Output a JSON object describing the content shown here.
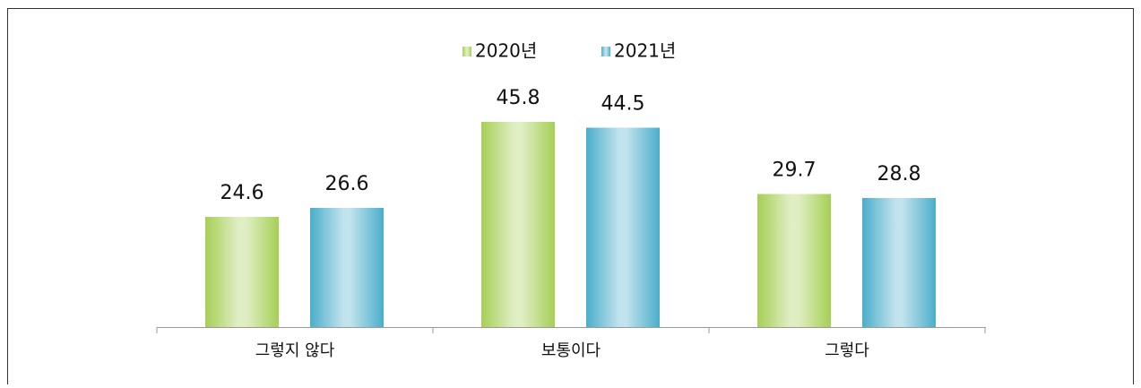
{
  "chart_data": {
    "type": "bar",
    "categories": [
      "그렇지 않다",
      "보통이다",
      "그렇다"
    ],
    "series": [
      {
        "name": "2020년",
        "color": "#a6cf55",
        "values": [
          24.6,
          45.8,
          29.7
        ]
      },
      {
        "name": "2021년",
        "color": "#4aaecb",
        "values": [
          26.6,
          44.5,
          28.8
        ]
      }
    ]
  }
}
